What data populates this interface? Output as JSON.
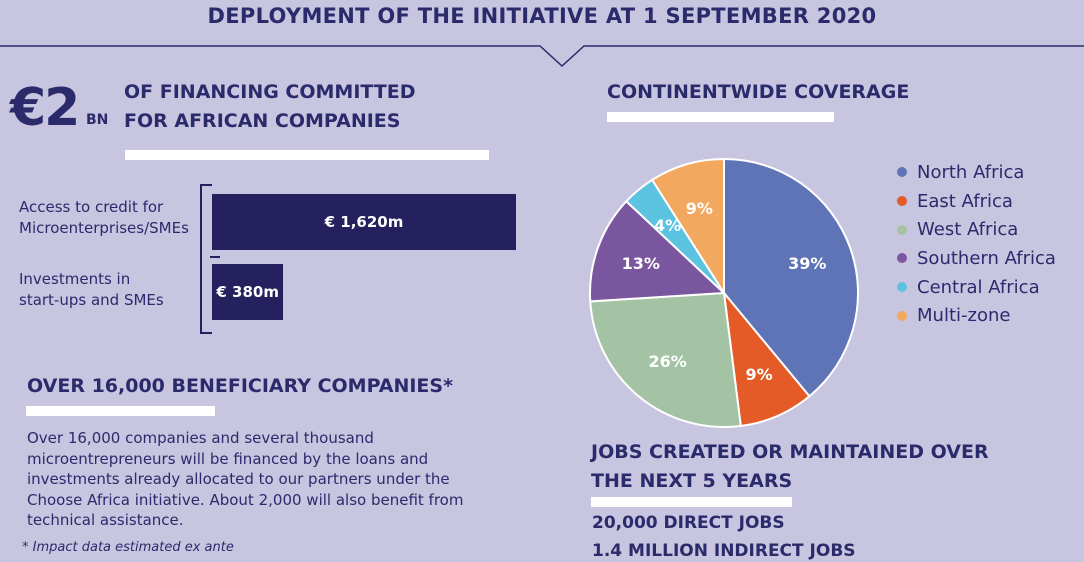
{
  "header": {
    "title": "DEPLOYMENT OF THE INITIATIVE AT 1 SEPTEMBER 2020"
  },
  "financing": {
    "amount": "€2",
    "unit": "BN",
    "heading_line1": "OF FINANCING COMMITTED",
    "heading_line2": "FOR AFRICAN COMPANIES",
    "bars": [
      {
        "label_line1": "Access to credit for",
        "label_line2": "Microenterprises/SMEs",
        "value_label": "€ 1,620m",
        "value": 1620
      },
      {
        "label_line1": "Investments in",
        "label_line2": "start-ups and SMEs",
        "value_label": "€ 380m",
        "value": 380
      }
    ]
  },
  "beneficiaries": {
    "heading": "OVER 16,000 BENEFICIARY COMPANIES*",
    "body_lines": [
      "Over 16,000 companies and several thousand",
      "microentrepreneurs will be financed by the loans and",
      "investments already allocated to our partners under the",
      "Choose Africa initiative. About 2,000 will also benefit from",
      "technical assistance."
    ],
    "footnote": "* Impact data estimated ex ante"
  },
  "coverage": {
    "heading": "CONTINENTWIDE COVERAGE"
  },
  "jobs": {
    "heading_line1": "JOBS CREATED OR MAINTAINED OVER",
    "heading_line2": "THE NEXT 5 YEARS",
    "direct": "20,000 DIRECT JOBS",
    "indirect": "1.4 MILLION INDIRECT JOBS"
  },
  "chart_data": {
    "type": "pie",
    "title": "",
    "slices": [
      {
        "name": "North Africa",
        "value": 39,
        "label": "39%",
        "color": "#5f74b7"
      },
      {
        "name": "East Africa",
        "value": 9,
        "label": "9%",
        "color": "#e55b28"
      },
      {
        "name": "West Africa",
        "value": 26,
        "label": "26%",
        "color": "#a3c3a4"
      },
      {
        "name": "Southern Africa",
        "value": 13,
        "label": "13%",
        "color": "#7a569e"
      },
      {
        "name": "Central Africa",
        "value": 4,
        "label": "4%",
        "color": "#5bc3df"
      },
      {
        "name": "Multi-zone",
        "value": 9,
        "label": "9%",
        "color": "#f2a95f"
      }
    ],
    "legend_position": "right"
  }
}
